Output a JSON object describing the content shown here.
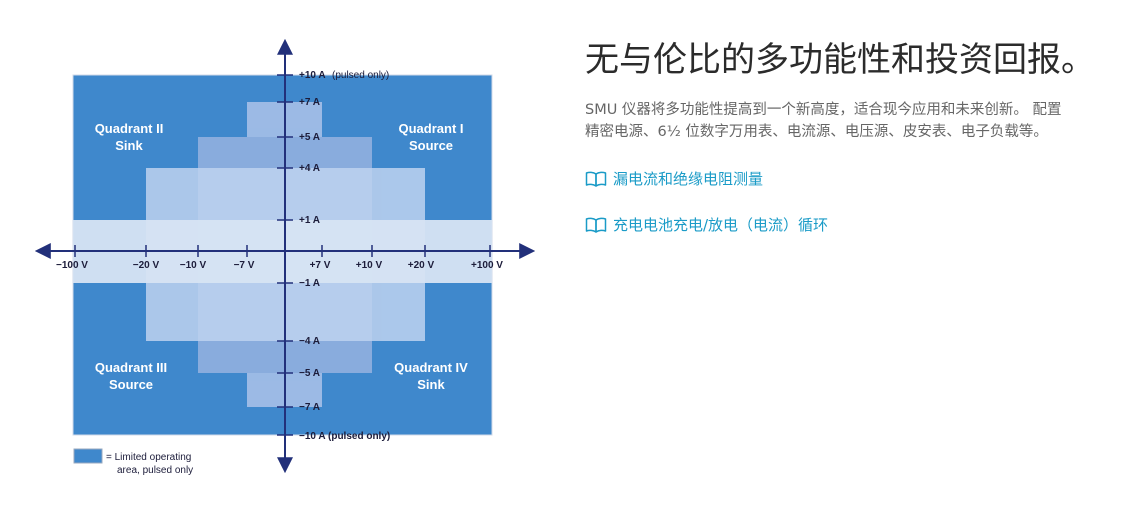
{
  "diagram": {
    "current_labels": [
      "+10 A",
      "+7 A",
      "+5 A",
      "+4 A",
      "+1 A",
      "−1 A",
      "−4 A",
      "−5 A",
      "−7 A",
      "−10 A (pulsed only)"
    ],
    "pulsed_note": "(pulsed only)",
    "voltage_labels": [
      "−100 V",
      "−20 V",
      "−10 V",
      "−7 V",
      "+7 V",
      "+10 V",
      "+20 V",
      "+100 V"
    ],
    "quadrants": {
      "q2": [
        "Quadrant II",
        "Sink"
      ],
      "q1": [
        "Quadrant I",
        "Source"
      ],
      "q3": [
        "Quadrant III",
        "Source"
      ],
      "q4": [
        "Quadrant IV",
        "Sink"
      ]
    },
    "legend": [
      "= Limited operating",
      "area, pulsed only"
    ],
    "colors": {
      "limited_area": "#3f88cc",
      "mid_region": "#8eaede",
      "light_region": "#bed3f0",
      "axis": "#22307a"
    }
  },
  "content": {
    "title": "无与伦比的多功能性和投资回报。",
    "description_lines": [
      "SMU 仪器将多功能性提高到一个新高度，适合现今应用和未来创新。 配置",
      "精密电源、6½ 位数字万用表、电流源、电压源、皮安表、电子负载等。"
    ],
    "links": [
      {
        "label": "漏电流和绝缘电阻测量",
        "icon": "open-book-icon"
      },
      {
        "label": "充电电池充电/放电（电流）循环",
        "icon": "open-book-icon"
      }
    ]
  }
}
